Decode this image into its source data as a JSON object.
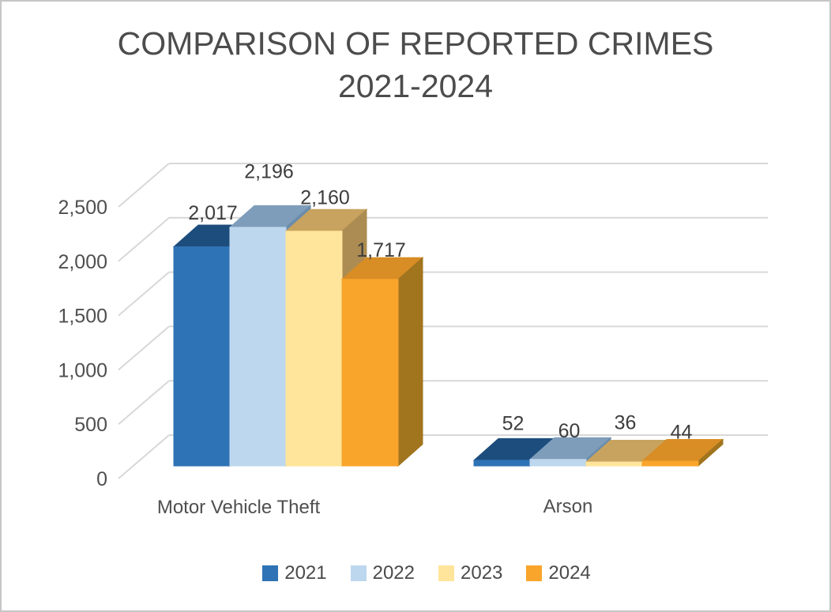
{
  "title": {
    "line1": "COMPARISON OF REPORTED CRIMES",
    "line2": "2021-2024"
  },
  "chart_data": {
    "type": "bar",
    "style": "3d-clustered-column",
    "title": "COMPARISON OF REPORTED CRIMES 2021-2024",
    "categories": [
      "Motor Vehicle Theft",
      "Arson"
    ],
    "series": [
      {
        "name": "2021",
        "values": [
          2017,
          52
        ],
        "labels": [
          "2,017",
          "52"
        ],
        "color": "#2E73B5",
        "color_top": "#1D4D7C",
        "color_side": "#173E66"
      },
      {
        "name": "2022",
        "values": [
          2196,
          60
        ],
        "labels": [
          "2,196",
          "60"
        ],
        "color": "#BDD7EE",
        "color_top": "#7E9DBB",
        "color_side": "#6B8CAC"
      },
      {
        "name": "2023",
        "values": [
          2160,
          36
        ],
        "labels": [
          "2,160",
          "36"
        ],
        "color": "#FFE59B",
        "color_top": "#C7A35F",
        "color_side": "#AC8C52"
      },
      {
        "name": "2024",
        "values": [
          1717,
          44
        ],
        "labels": [
          "1,717",
          "44"
        ],
        "color": "#F9A52C",
        "color_top": "#D88D25",
        "color_side": "#A1741E"
      }
    ],
    "y_axis": {
      "ticks": [
        0,
        500,
        1000,
        1500,
        2000,
        2500
      ],
      "tick_labels": [
        "0",
        "500",
        "1,000",
        "1,500",
        "2,000",
        "2,500"
      ],
      "min": 0,
      "max": 2500,
      "gridlines": true
    },
    "legend": {
      "position": "bottom",
      "entries": [
        "2021",
        "2022",
        "2023",
        "2024"
      ]
    },
    "colors": {
      "text": "#4a4a4a",
      "tick_text": "#4f4f4f",
      "data_label_text": "#3d3d3d",
      "gridline": "#D8D8D8",
      "background": "#ffffff",
      "border": "#c6c6c6"
    }
  }
}
